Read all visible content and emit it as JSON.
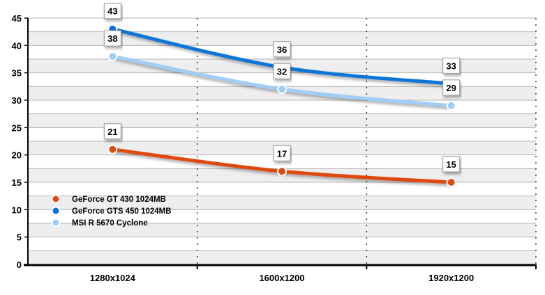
{
  "chart_data": {
    "type": "line",
    "title": "",
    "xlabel": "",
    "ylabel": "",
    "categories": [
      "1280x1024",
      "1600x1200",
      "1920x1200"
    ],
    "ylim": [
      0,
      45
    ],
    "yticks": [
      0,
      5,
      10,
      15,
      20,
      25,
      30,
      35,
      40,
      45
    ],
    "grid": true,
    "legend_position": "bottom-left",
    "series": [
      {
        "name": "GeForce GT 430 1024MB",
        "values": [
          21,
          17,
          15
        ],
        "color": "#e04a10",
        "marker": "#e04a10"
      },
      {
        "name": "GeForce GTS 450 1024MB",
        "values": [
          43,
          36,
          33
        ],
        "color": "#0a74d8",
        "marker": "#0a74d8"
      },
      {
        "name": "MSI R 5670 Cyclone",
        "values": [
          38,
          32,
          29
        ],
        "color": "#9fcdf5",
        "marker": "#9fcdf5"
      }
    ]
  }
}
